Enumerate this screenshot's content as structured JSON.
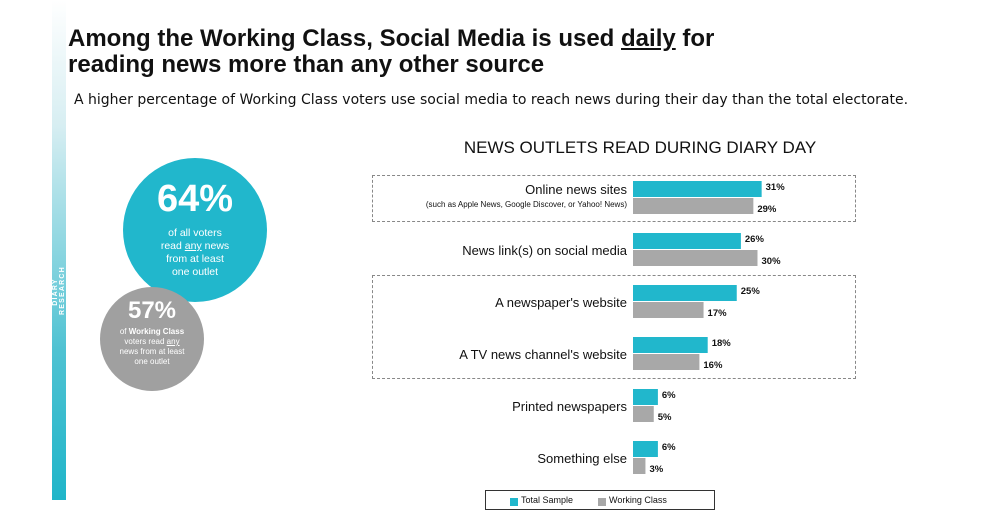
{
  "side_label": "DIARY RESEARCH",
  "title": {
    "line1_pre": "Among the Working Class, Social Media is used ",
    "line1_underlined": "daily",
    "line1_post": " for",
    "line2": "reading news more than any other source"
  },
  "subtitle": "A higher percentage of Working Class voters use social media to reach news during their day than the total electorate.",
  "callouts": {
    "all_voters": {
      "percent": "64%",
      "line1": "of all voters",
      "line2_pre": "read ",
      "line2_u": "any",
      "line2_post": " news",
      "line3": "from at least",
      "line4": "one outlet",
      "color": "#21b7cc"
    },
    "working_class": {
      "percent": "57%",
      "line1_pre": "of ",
      "line1_bold": "Working Class",
      "line2_pre": "voters read ",
      "line2_u": "any",
      "line3": "news from at least",
      "line4": "one outlet",
      "color": "#a0a0a0"
    }
  },
  "legend": {
    "total": "Total Sample",
    "working": "Working Class"
  },
  "chart_data": {
    "type": "bar",
    "orientation": "horizontal",
    "title": "NEWS OUTLETS READ DURING DIARY DAY",
    "categories": [
      "Online news sites",
      "News link(s) on social media",
      "A newspaper's website",
      "A TV news channel's website",
      "Printed newspapers",
      "Something else"
    ],
    "category_notes": [
      "(such as Apple News, Google Discover, or Yahoo! News)",
      "",
      "",
      "",
      "",
      ""
    ],
    "series": [
      {
        "name": "Total Sample",
        "color": "#21b7cc",
        "values": [
          31,
          26,
          25,
          18,
          6,
          6
        ]
      },
      {
        "name": "Working Class",
        "color": "#a8a8a8",
        "values": [
          29,
          30,
          17,
          16,
          5,
          3
        ]
      }
    ],
    "value_suffix": "%",
    "grid": false
  }
}
